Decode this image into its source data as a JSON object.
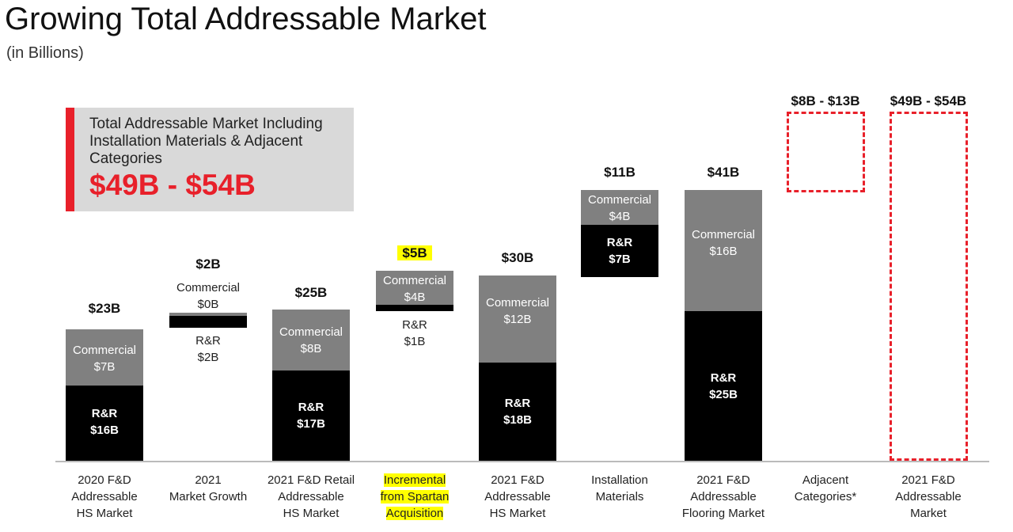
{
  "title": "Growing Total Addressable Market",
  "subtitle": "(in Billions)",
  "callout": {
    "text": "Total Addressable Market Including Installation Materials & Adjacent Categories",
    "value": "$49B - $54B"
  },
  "colors": {
    "commercial": "#808080",
    "rr": "#000000",
    "accent": "#e8202a",
    "highlight": "#ffff00"
  },
  "chart_data": {
    "type": "bar",
    "subtype": "waterfall",
    "title": "Growing Total Addressable Market",
    "ylabel": "in Billions",
    "categories": [
      "2020 F&D\nAddressable\nHS Market",
      "2021\nMarket Growth",
      "2021 F&D Retail\nAddressable\nHS Market",
      "Incremental\nfrom Spartan\nAcquisition",
      "2021 F&D\nAddressable\nHS Market",
      "Installation\nMaterials",
      "2021 F&D\nAddressable\nFlooring Market",
      "Adjacent\nCategories*",
      "2021 F&D\nAddressable\nMarket"
    ],
    "totals": [
      "$23B",
      "$2B",
      "$25B",
      "$5B",
      "$30B",
      "$11B",
      "$41B",
      "$8B - $13B",
      "$49B - $54B"
    ],
    "series": [
      {
        "name": "Commercial",
        "values": [
          7,
          0,
          8,
          4,
          12,
          4,
          16,
          null,
          null
        ],
        "labels": [
          "Commercial\n$7B",
          "Commercial\n$0B",
          "Commercial\n$8B",
          "Commercial\n$4B",
          "Commercial\n$12B",
          "Commercial\n$4B",
          "Commercial\n$16B",
          "",
          ""
        ]
      },
      {
        "name": "R&R",
        "values": [
          16,
          2,
          17,
          1,
          18,
          7,
          25,
          null,
          null
        ],
        "labels": [
          "R&R\n$16B",
          "R&R\n$2B",
          "R&R\n$17B",
          "R&R\n$1B",
          "R&R\n$18B",
          "R&R\n$7B",
          "R&R\n$25B",
          "",
          ""
        ]
      }
    ],
    "ranges": {
      "adjacent": [
        8,
        13
      ],
      "total": [
        49,
        54
      ]
    }
  }
}
